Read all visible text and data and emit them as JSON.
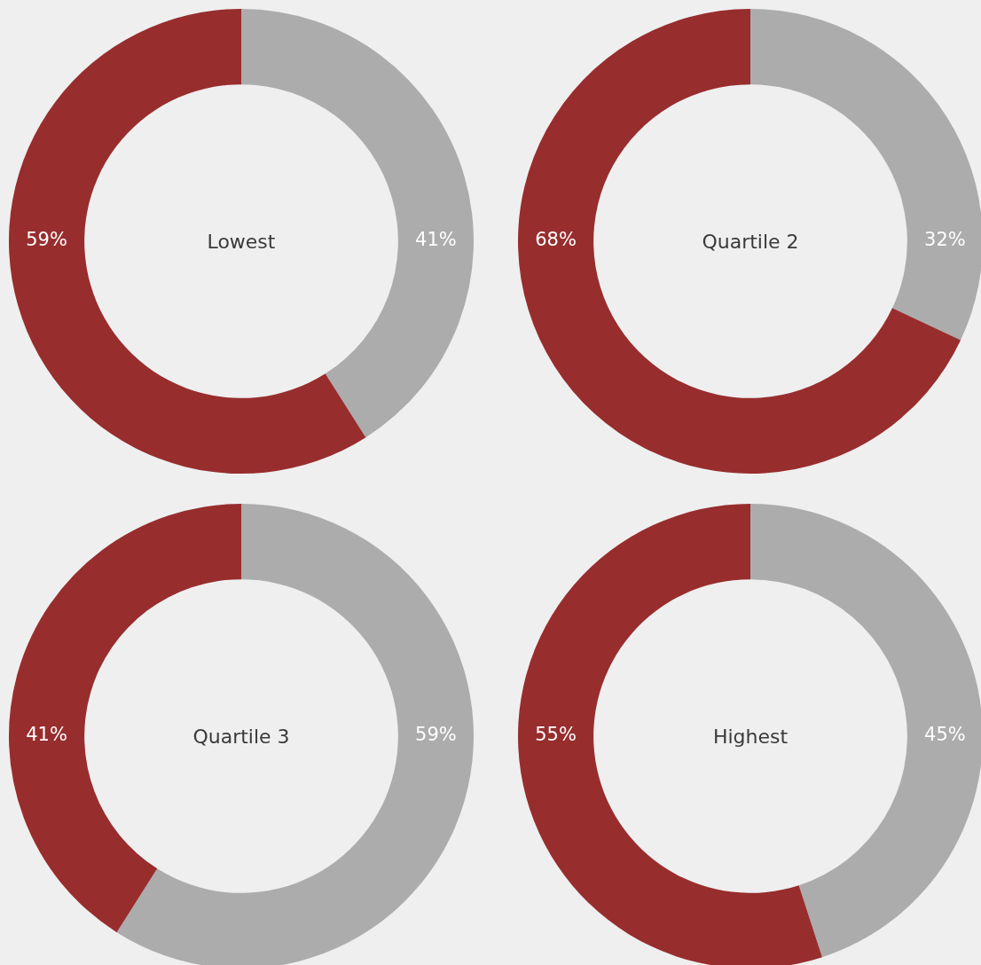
{
  "chart_data": [
    {
      "type": "donut",
      "title": "Lowest",
      "categories": [
        null,
        null
      ],
      "values": [
        41,
        59
      ],
      "colors": [
        "#acacac",
        "#982d2e"
      ],
      "value_labels": [
        "41%",
        "59%"
      ]
    },
    {
      "type": "donut",
      "title": "Quartile 2",
      "categories": [
        null,
        null
      ],
      "values": [
        32,
        68
      ],
      "colors": [
        "#acacac",
        "#982d2e"
      ],
      "value_labels": [
        "32%",
        "68%"
      ]
    },
    {
      "type": "donut",
      "title": "Quartile 3",
      "categories": [
        null,
        null
      ],
      "values": [
        59,
        41
      ],
      "colors": [
        "#acacac",
        "#982d2e"
      ],
      "value_labels": [
        "59%",
        "41%"
      ]
    },
    {
      "type": "donut",
      "title": "Highest",
      "categories": [
        null,
        null
      ],
      "values": [
        45,
        55
      ],
      "colors": [
        "#acacac",
        "#982d2e"
      ],
      "value_labels": [
        "45%",
        "55%"
      ]
    }
  ]
}
